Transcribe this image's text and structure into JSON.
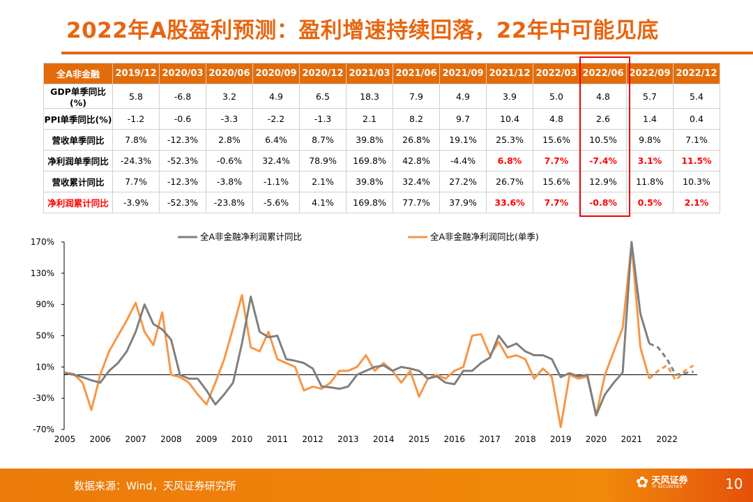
{
  "title": "2022年A股盈利预测：盈利增速持续回落，22年中可能见底",
  "table": {
    "corner": "全A非金融",
    "columns": [
      "2019/12",
      "2020/03",
      "2020/06",
      "2020/09",
      "2020/12",
      "2021/03",
      "2021/06",
      "2021/09",
      "2021/12",
      "2022/03",
      "2022/06",
      "2022/09",
      "2022/12"
    ],
    "highlighted_column": "2022/06",
    "rows": [
      {
        "label": "GDP单季同比(%)",
        "values": [
          "5.8",
          "-6.8",
          "3.2",
          "4.9",
          "6.5",
          "18.3",
          "7.9",
          "4.9",
          "3.9",
          "5.0",
          "4.8",
          "5.7",
          "5.4"
        ],
        "red_from": 99
      },
      {
        "label": "PPI单季同比(%)",
        "values": [
          "-1.2",
          "-0.6",
          "-3.3",
          "-2.2",
          "-1.3",
          "2.1",
          "8.2",
          "9.7",
          "10.4",
          "4.8",
          "2.6",
          "1.4",
          "0.4"
        ],
        "red_from": 99
      },
      {
        "label": "营收单季同比",
        "values": [
          "7.8%",
          "-12.3%",
          "2.8%",
          "6.4%",
          "8.7%",
          "39.8%",
          "26.8%",
          "19.1%",
          "25.3%",
          "15.6%",
          "10.5%",
          "9.8%",
          "7.1%"
        ],
        "red_from": 99
      },
      {
        "label": "净利润单季同比",
        "values": [
          "-24.3%",
          "-52.3%",
          "-0.6%",
          "32.4%",
          "78.9%",
          "169.8%",
          "42.8%",
          "-4.4%",
          "6.8%",
          "7.7%",
          "-7.4%",
          "3.1%",
          "11.5%"
        ],
        "red_from": 8
      },
      {
        "label": "营收累计同比",
        "values": [
          "7.7%",
          "-12.3%",
          "-3.8%",
          "-1.1%",
          "2.1%",
          "39.8%",
          "32.4%",
          "27.2%",
          "26.7%",
          "15.6%",
          "12.9%",
          "11.8%",
          "10.3%"
        ],
        "red_from": 99
      },
      {
        "label": "净利润累计同比",
        "values": [
          "-3.9%",
          "-52.3%",
          "-23.8%",
          "-5.6%",
          "4.1%",
          "169.8%",
          "77.7%",
          "37.9%",
          "33.6%",
          "7.7%",
          "-0.8%",
          "0.5%",
          "2.1%"
        ],
        "red_from": 8,
        "label_red": true
      }
    ]
  },
  "chart_data": {
    "type": "line",
    "x_start": 2005,
    "step": 0.25,
    "xticks": [
      "2005",
      "2006",
      "2007",
      "2008",
      "2009",
      "2010",
      "2011",
      "2012",
      "2013",
      "2014",
      "2015",
      "2016",
      "2017",
      "2018",
      "2019",
      "2020",
      "2021",
      "2022"
    ],
    "yticks": [
      "170%",
      "130%",
      "90%",
      "50%",
      "10%",
      "-30%",
      "-70%"
    ],
    "ylim": [
      -70,
      170
    ],
    "forecast_from": 2021.5,
    "series": [
      {
        "name": "全A非金融净利润累计同比",
        "color": "#7f7f7f",
        "values": [
          2,
          0,
          -3,
          -7,
          -10,
          5,
          15,
          30,
          55,
          90,
          65,
          58,
          45,
          0,
          -5,
          -5,
          -20,
          -38,
          -25,
          -10,
          40,
          100,
          55,
          48,
          50,
          20,
          18,
          15,
          8,
          -15,
          -16,
          -18,
          -15,
          0,
          5,
          10,
          12,
          5,
          10,
          8,
          5,
          -5,
          -2,
          -10,
          -12,
          5,
          5,
          15,
          22,
          50,
          35,
          40,
          30,
          25,
          25,
          20,
          -3,
          2,
          -2,
          0,
          -52,
          -25,
          -10,
          3,
          170,
          78,
          40,
          35,
          20,
          0,
          2,
          4
        ]
      },
      {
        "name": "全A非金融净利润同比(单季)",
        "color": "#F79646",
        "values": [
          3,
          1,
          -10,
          -45,
          0,
          30,
          50,
          70,
          92,
          55,
          38,
          80,
          0,
          -3,
          -10,
          -25,
          -38,
          -10,
          20,
          60,
          102,
          35,
          30,
          55,
          20,
          15,
          10,
          -20,
          -15,
          -18,
          -10,
          5,
          5,
          10,
          25,
          5,
          15,
          5,
          -10,
          5,
          -28,
          -5,
          0,
          -5,
          5,
          10,
          50,
          52,
          25,
          42,
          22,
          25,
          20,
          -5,
          8,
          -3,
          -67,
          0,
          -5,
          -2,
          -52,
          0,
          30,
          60,
          168,
          35,
          -5,
          5,
          12,
          -7,
          5,
          12
        ]
      }
    ]
  },
  "footer": {
    "source": "数据来源：Wind，天风证券研究所",
    "logo_text": "天风证券",
    "logo_sub": "TF SECURITIES",
    "page": "10"
  }
}
